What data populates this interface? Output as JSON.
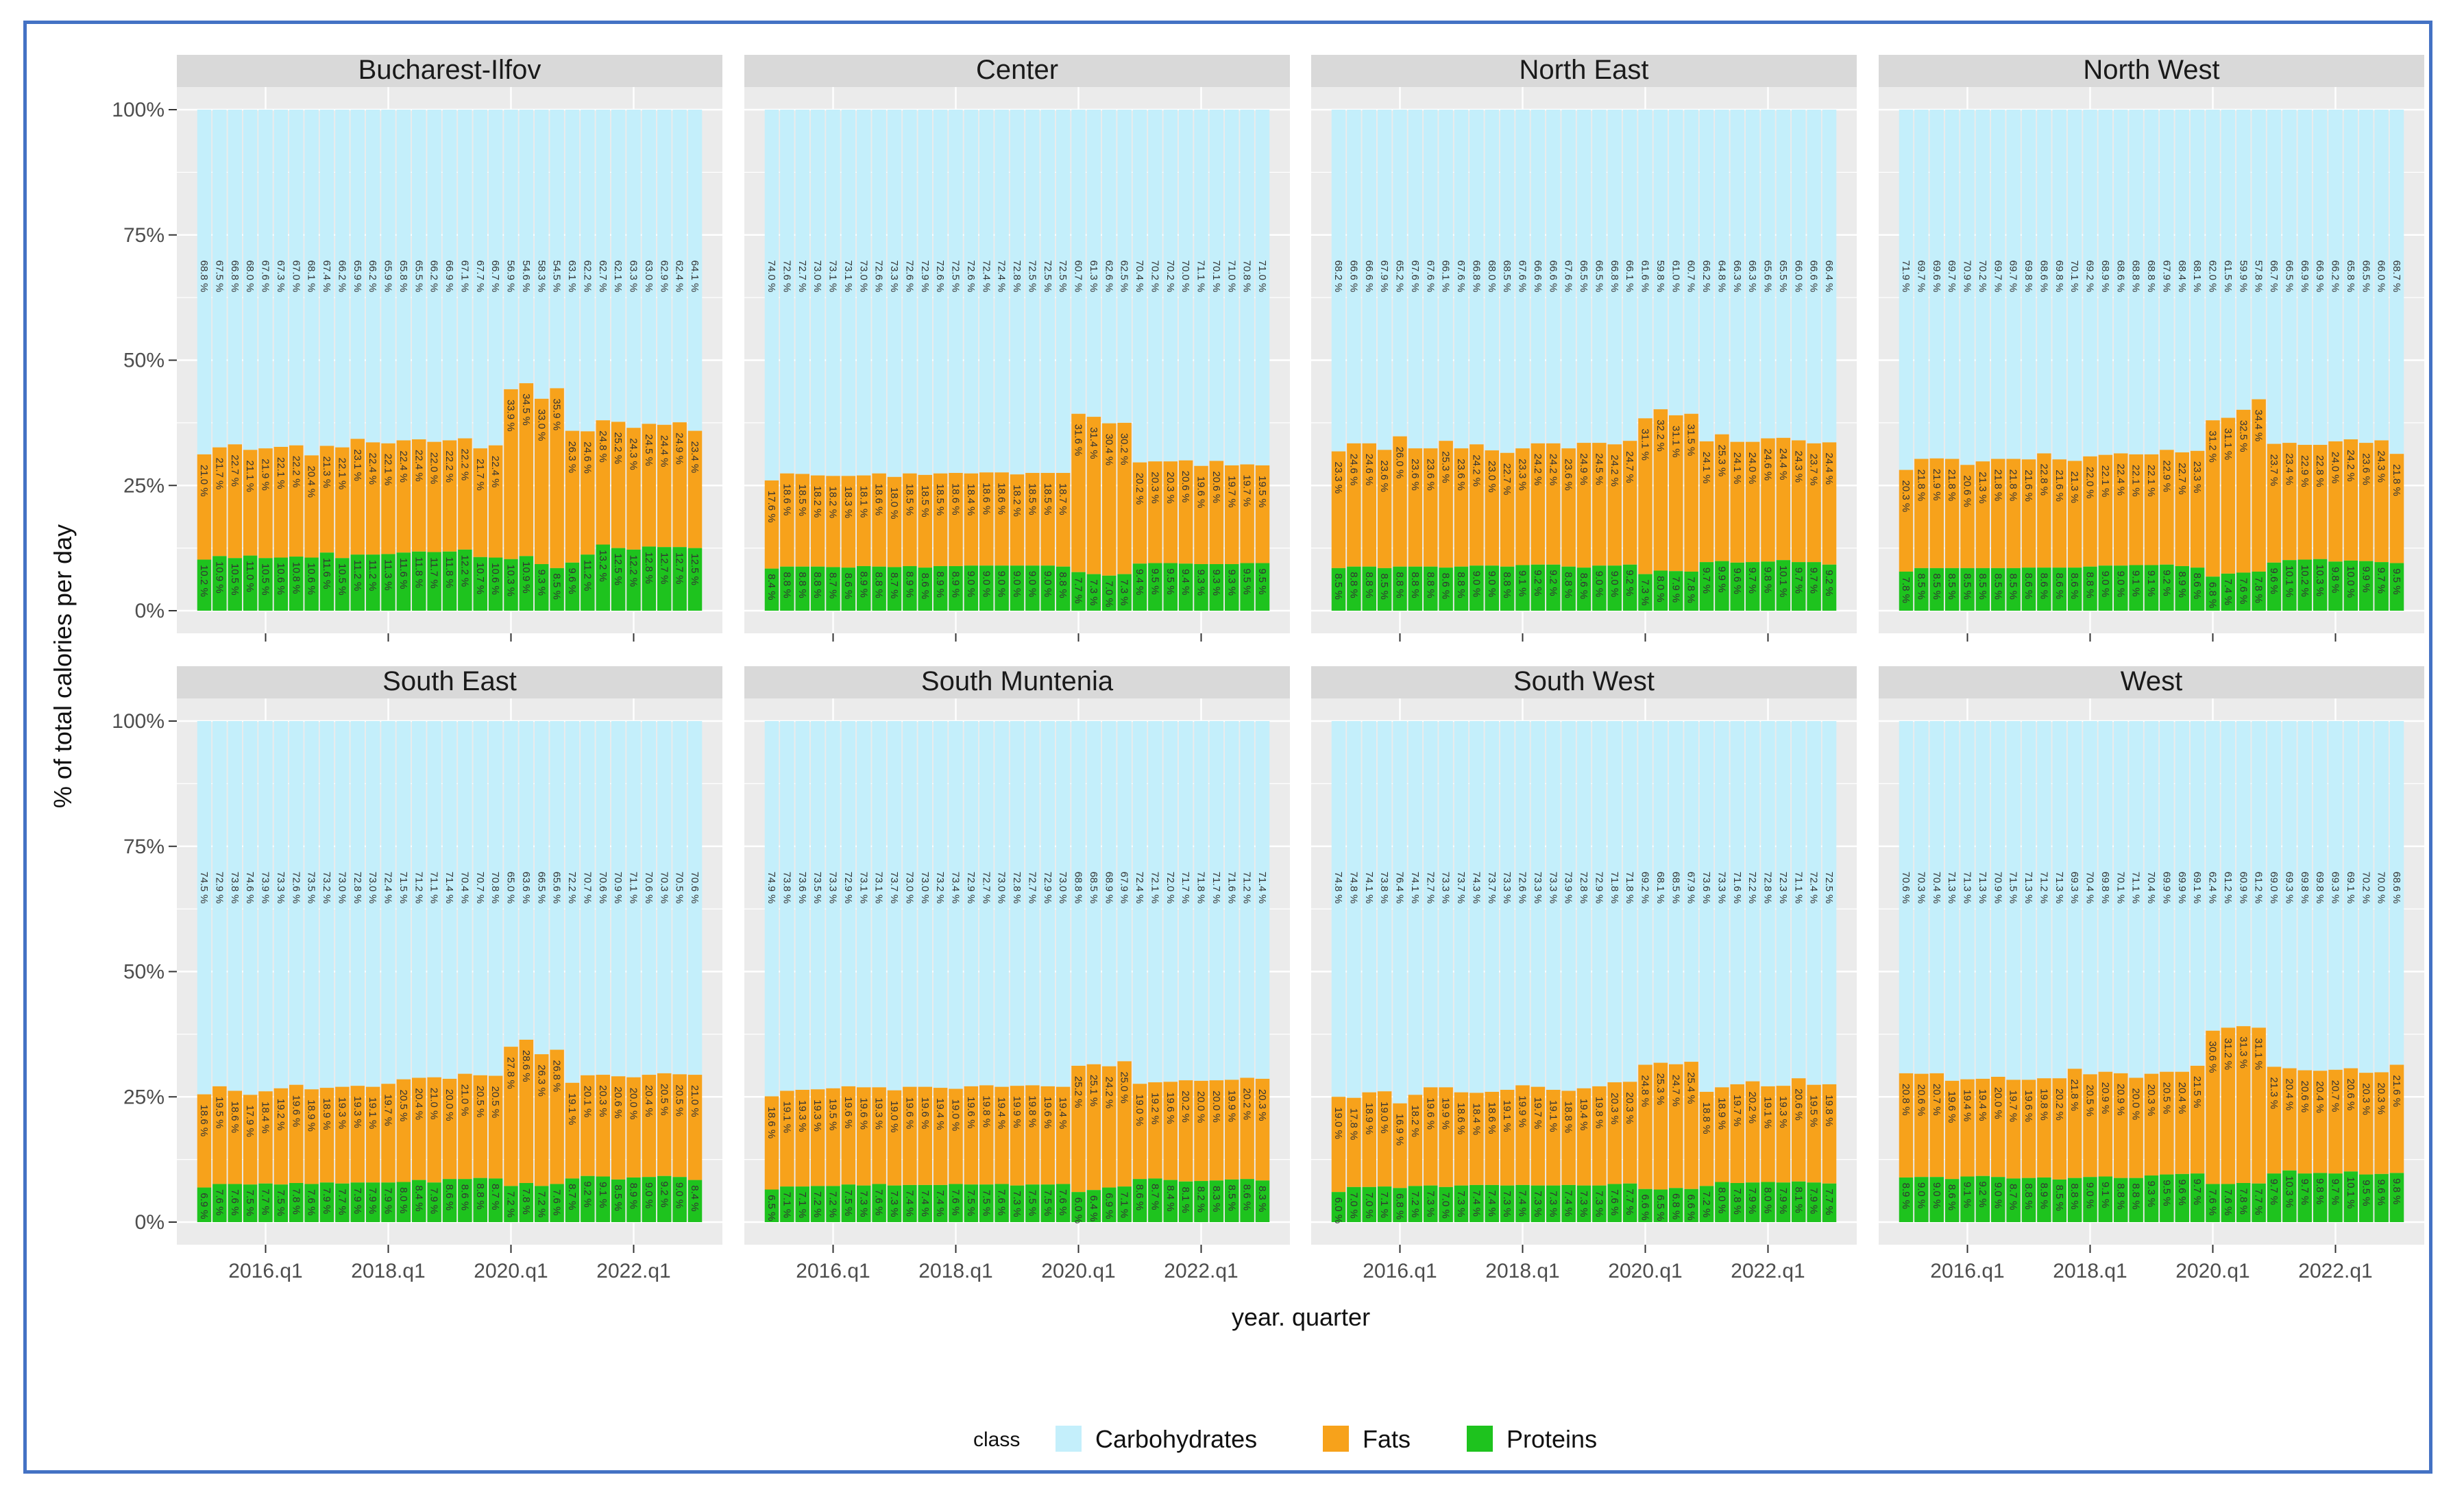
{
  "chart_data": {
    "type": "bar",
    "layout": "faceted stacked bar, 2 rows x 4 columns",
    "ylabel": "% of total calories per day",
    "xlabel": "year. quarter",
    "y_ticks": [
      "0%",
      "25%",
      "50%",
      "75%",
      "100%"
    ],
    "ylim": [
      0,
      100
    ],
    "x_ticks": [
      "2016.q1",
      "2018.q1",
      "2020.q1",
      "2022.q1"
    ],
    "x_tick_index": [
      4,
      12,
      20,
      28
    ],
    "quarters": [
      "2015.q1",
      "2015.q2",
      "2015.q3",
      "2015.q4",
      "2016.q1",
      "2016.q2",
      "2016.q3",
      "2016.q4",
      "2017.q1",
      "2017.q2",
      "2017.q3",
      "2017.q4",
      "2018.q1",
      "2018.q2",
      "2018.q3",
      "2018.q4",
      "2019.q1",
      "2019.q2",
      "2019.q3",
      "2019.q4",
      "2020.q1",
      "2020.q2",
      "2020.q3",
      "2020.q4",
      "2021.q1",
      "2021.q2",
      "2021.q3",
      "2021.q4",
      "2022.q1",
      "2022.q2",
      "2022.q3",
      "2022.q4",
      "2023.q1"
    ],
    "colors": {
      "Carbohydrates": "#C4EFFB",
      "Fats": "#F7A21B",
      "Proteins": "#1EC31E",
      "panel_bg": "#EBEBEB",
      "strip_bg": "#D9D9D9"
    },
    "legend": {
      "title": "class",
      "position": "bottom",
      "items": [
        "Carbohydrates",
        "Fats",
        "Proteins"
      ]
    },
    "grid": true,
    "label_suffix": " %",
    "panels": [
      {
        "region": "Bucharest-Ilfov",
        "proteins": [
          10.2,
          10.9,
          10.5,
          11.0,
          10.5,
          10.6,
          10.8,
          10.6,
          11.6,
          10.5,
          11.2,
          11.2,
          11.3,
          11.6,
          11.8,
          11.7,
          11.8,
          12.2,
          10.7,
          10.6,
          10.3,
          10.9,
          9.3,
          8.5,
          9.6,
          11.2,
          13.2,
          12.5,
          12.2,
          12.8,
          12.7,
          12.7,
          12.5
        ],
        "fats": [
          21.0,
          21.7,
          22.7,
          21.1,
          21.9,
          22.1,
          22.2,
          20.4,
          21.3,
          22.1,
          23.1,
          22.4,
          22.1,
          22.4,
          22.4,
          22.0,
          22.2,
          22.2,
          21.7,
          22.4,
          33.9,
          34.5,
          33.0,
          35.9,
          26.3,
          24.6,
          24.8,
          25.2,
          24.3,
          24.5,
          24.4,
          24.9,
          23.4
        ],
        "carbs": [
          68.8,
          67.5,
          66.8,
          68.0,
          67.6,
          67.3,
          67.0,
          68.1,
          67.4,
          66.2,
          65.9,
          66.2,
          65.9,
          65.8,
          65.5,
          66.2,
          66.9,
          67.1,
          67.7,
          66.7,
          56.9,
          54.6,
          58.3,
          54.5,
          63.1,
          62.2,
          62.7,
          62.1,
          63.3,
          63.0,
          62.9,
          62.4,
          64.1
        ]
      },
      {
        "region": "Center",
        "proteins": [
          8.4,
          8.8,
          8.8,
          8.8,
          8.7,
          8.6,
          8.9,
          8.8,
          8.7,
          8.9,
          8.6,
          8.9,
          8.9,
          9.0,
          9.0,
          9.0,
          9.0,
          9.0,
          9.0,
          8.8,
          7.7,
          7.3,
          7.0,
          7.3,
          9.4,
          9.5,
          9.5,
          9.4,
          9.3,
          9.3,
          9.3,
          9.5,
          9.5
        ],
        "fats": [
          17.6,
          18.6,
          18.5,
          18.2,
          18.2,
          18.3,
          18.1,
          18.6,
          18.0,
          18.5,
          18.5,
          18.5,
          18.6,
          18.4,
          18.6,
          18.6,
          18.2,
          18.5,
          18.5,
          18.7,
          31.6,
          31.4,
          30.4,
          30.2,
          20.2,
          20.3,
          20.3,
          20.6,
          19.6,
          20.6,
          19.7,
          19.7,
          19.5
        ],
        "carbs": [
          74.0,
          72.6,
          72.7,
          73.0,
          73.1,
          73.1,
          73.0,
          72.6,
          73.3,
          72.6,
          72.9,
          72.6,
          72.5,
          72.6,
          72.4,
          72.4,
          72.8,
          72.5,
          72.5,
          72.5,
          60.7,
          61.3,
          62.6,
          62.5,
          70.4,
          70.2,
          70.2,
          70.0,
          71.1,
          70.1,
          71.0,
          70.8,
          71.0
        ]
      },
      {
        "region": "North East",
        "proteins": [
          8.5,
          8.8,
          8.8,
          8.5,
          8.8,
          8.8,
          8.8,
          8.6,
          8.8,
          9.0,
          9.0,
          8.8,
          9.1,
          9.2,
          9.2,
          8.8,
          8.6,
          9.0,
          9.0,
          9.2,
          7.3,
          8.0,
          7.9,
          7.8,
          9.7,
          9.9,
          9.6,
          9.7,
          9.8,
          10.1,
          9.7,
          9.7,
          9.2
        ],
        "fats": [
          23.3,
          24.6,
          24.6,
          23.6,
          26.0,
          23.6,
          23.6,
          25.3,
          23.6,
          24.2,
          23.0,
          22.7,
          23.3,
          24.2,
          24.2,
          23.6,
          24.9,
          24.5,
          24.2,
          24.7,
          31.1,
          32.2,
          31.1,
          31.5,
          24.1,
          25.3,
          24.1,
          24.0,
          24.6,
          24.4,
          24.3,
          23.7,
          24.4
        ],
        "carbs": [
          68.2,
          66.6,
          66.6,
          67.9,
          65.2,
          67.6,
          67.6,
          66.1,
          67.6,
          66.8,
          68.0,
          68.5,
          67.6,
          66.6,
          66.6,
          67.6,
          66.5,
          66.5,
          66.8,
          66.1,
          61.6,
          59.8,
          61.0,
          60.7,
          66.2,
          64.8,
          66.3,
          66.3,
          65.6,
          65.5,
          66.0,
          66.6,
          66.4
        ]
      },
      {
        "region": "North West",
        "proteins": [
          7.8,
          8.5,
          8.5,
          8.5,
          8.5,
          8.5,
          8.5,
          8.5,
          8.6,
          8.6,
          8.6,
          8.6,
          8.8,
          9.0,
          9.0,
          9.1,
          9.1,
          9.2,
          8.9,
          8.6,
          6.8,
          7.4,
          7.6,
          7.8,
          9.6,
          10.1,
          10.2,
          10.3,
          9.8,
          10.0,
          9.9,
          9.7,
          9.5
        ],
        "fats": [
          20.3,
          21.8,
          21.9,
          21.8,
          20.6,
          21.3,
          21.8,
          21.8,
          21.6,
          22.8,
          21.6,
          21.3,
          22.0,
          22.1,
          22.4,
          22.1,
          22.1,
          22.9,
          22.7,
          23.3,
          31.2,
          31.1,
          32.5,
          34.4,
          23.7,
          23.4,
          22.9,
          22.8,
          24.0,
          24.2,
          23.6,
          24.3,
          21.8
        ],
        "carbs": [
          71.9,
          69.7,
          69.6,
          69.7,
          70.9,
          70.2,
          69.7,
          69.7,
          69.8,
          68.6,
          69.8,
          70.1,
          69.2,
          68.9,
          68.6,
          68.8,
          68.8,
          67.9,
          68.4,
          68.1,
          62.0,
          61.5,
          59.9,
          57.8,
          66.7,
          66.5,
          66.9,
          66.9,
          66.2,
          65.8,
          66.5,
          66.0,
          68.7
        ]
      },
      {
        "region": "South East",
        "proteins": [
          6.9,
          7.6,
          7.6,
          7.5,
          7.7,
          7.5,
          7.8,
          7.6,
          7.9,
          7.7,
          7.9,
          7.9,
          7.9,
          8.0,
          8.4,
          7.9,
          8.6,
          8.6,
          8.8,
          8.7,
          7.2,
          7.8,
          7.2,
          7.6,
          8.7,
          9.2,
          9.1,
          8.5,
          8.9,
          9.0,
          9.2,
          9.0,
          8.4
        ],
        "fats": [
          18.6,
          19.5,
          18.6,
          17.9,
          18.4,
          19.2,
          19.6,
          18.9,
          18.9,
          19.3,
          19.3,
          19.1,
          19.7,
          20.5,
          20.4,
          21.0,
          20.0,
          21.0,
          20.5,
          20.5,
          27.8,
          28.6,
          26.3,
          26.8,
          19.1,
          20.1,
          20.3,
          20.6,
          20.0,
          20.4,
          20.5,
          20.5,
          21.0
        ],
        "carbs": [
          74.5,
          72.9,
          73.8,
          74.6,
          73.9,
          73.3,
          72.6,
          73.5,
          73.2,
          73.0,
          72.8,
          73.0,
          72.4,
          71.5,
          71.2,
          71.1,
          71.4,
          70.4,
          70.7,
          70.8,
          65.0,
          63.6,
          66.5,
          65.6,
          72.2,
          70.7,
          70.6,
          70.9,
          71.1,
          70.6,
          70.3,
          70.5,
          70.6
        ]
      },
      {
        "region": "South Muntenia",
        "proteins": [
          6.5,
          7.1,
          7.1,
          7.2,
          7.2,
          7.5,
          7.3,
          7.6,
          7.3,
          7.4,
          7.4,
          7.4,
          7.6,
          7.5,
          7.5,
          7.6,
          7.3,
          7.5,
          7.5,
          7.6,
          6.0,
          6.4,
          6.9,
          7.1,
          8.6,
          8.7,
          8.4,
          8.1,
          8.2,
          8.3,
          8.5,
          8.6,
          8.3
        ],
        "fats": [
          18.6,
          19.1,
          19.3,
          19.3,
          19.5,
          19.6,
          19.6,
          19.3,
          19.0,
          19.6,
          19.6,
          19.4,
          19.0,
          19.6,
          19.8,
          19.4,
          19.9,
          19.8,
          19.6,
          19.4,
          25.2,
          25.1,
          24.2,
          25.0,
          19.0,
          19.2,
          19.6,
          20.2,
          20.0,
          20.0,
          19.9,
          20.2,
          20.3
        ],
        "carbs": [
          74.9,
          73.8,
          73.6,
          73.5,
          73.3,
          72.9,
          73.1,
          73.1,
          73.7,
          73.0,
          73.0,
          73.2,
          73.4,
          72.9,
          72.7,
          73.0,
          72.8,
          72.7,
          72.9,
          73.0,
          68.8,
          68.5,
          68.9,
          67.9,
          72.4,
          72.1,
          72.0,
          71.7,
          71.8,
          71.7,
          71.6,
          71.2,
          71.4
        ]
      },
      {
        "region": "South  West",
        "proteins": [
          6.0,
          7.0,
          7.0,
          7.1,
          6.8,
          7.2,
          7.3,
          7.0,
          7.3,
          7.4,
          7.4,
          7.3,
          7.4,
          7.3,
          7.3,
          7.4,
          7.3,
          7.3,
          7.6,
          7.7,
          6.6,
          6.5,
          6.8,
          6.6,
          7.2,
          8.0,
          7.8,
          7.9,
          8.0,
          7.9,
          8.1,
          7.9,
          7.7
        ],
        "fats": [
          19.0,
          17.8,
          18.9,
          19.0,
          16.9,
          18.2,
          19.6,
          19.9,
          18.6,
          18.4,
          18.6,
          19.1,
          19.9,
          19.7,
          19.1,
          18.8,
          19.4,
          19.8,
          20.3,
          20.3,
          24.8,
          25.3,
          24.7,
          25.4,
          18.8,
          18.9,
          19.7,
          20.2,
          19.1,
          19.3,
          20.6,
          19.5,
          19.8
        ],
        "carbs": [
          74.8,
          74.8,
          74.1,
          73.8,
          76.4,
          74.1,
          72.7,
          73.3,
          73.7,
          74.3,
          73.7,
          73.3,
          72.6,
          73.3,
          73.3,
          73.9,
          72.8,
          72.9,
          71.8,
          71.8,
          69.2,
          68.1,
          68.5,
          67.9,
          73.6,
          73.3,
          71.6,
          72.2,
          72.8,
          72.3,
          71.1,
          72.4,
          72.5
        ]
      },
      {
        "region": "West",
        "proteins": [
          8.9,
          9.0,
          9.0,
          8.6,
          9.1,
          9.2,
          9.0,
          8.7,
          8.8,
          8.9,
          8.5,
          8.8,
          9.0,
          9.1,
          8.8,
          8.8,
          9.3,
          9.5,
          9.6,
          9.7,
          7.6,
          7.6,
          7.8,
          7.7,
          9.7,
          10.3,
          9.7,
          9.8,
          9.7,
          10.1,
          9.5,
          9.6,
          9.8
        ],
        "fats": [
          20.8,
          20.6,
          20.7,
          19.6,
          19.4,
          19.4,
          20.0,
          19.7,
          19.6,
          19.8,
          20.2,
          21.8,
          20.5,
          20.9,
          20.9,
          20.0,
          20.3,
          20.5,
          20.4,
          21.5,
          30.6,
          31.2,
          31.3,
          31.1,
          21.3,
          20.4,
          20.6,
          20.4,
          20.7,
          20.6,
          20.3,
          20.3,
          21.6
        ],
        "carbs": [
          70.6,
          70.3,
          70.4,
          71.3,
          71.3,
          71.3,
          70.9,
          71.5,
          71.3,
          71.2,
          71.3,
          69.3,
          70.4,
          69.8,
          70.1,
          71.1,
          70.4,
          69.9,
          69.9,
          69.1,
          62.4,
          61.2,
          60.9,
          61.2,
          69.0,
          69.3,
          69.8,
          69.8,
          69.3,
          69.1,
          70.2,
          70.0,
          68.6
        ]
      }
    ]
  }
}
